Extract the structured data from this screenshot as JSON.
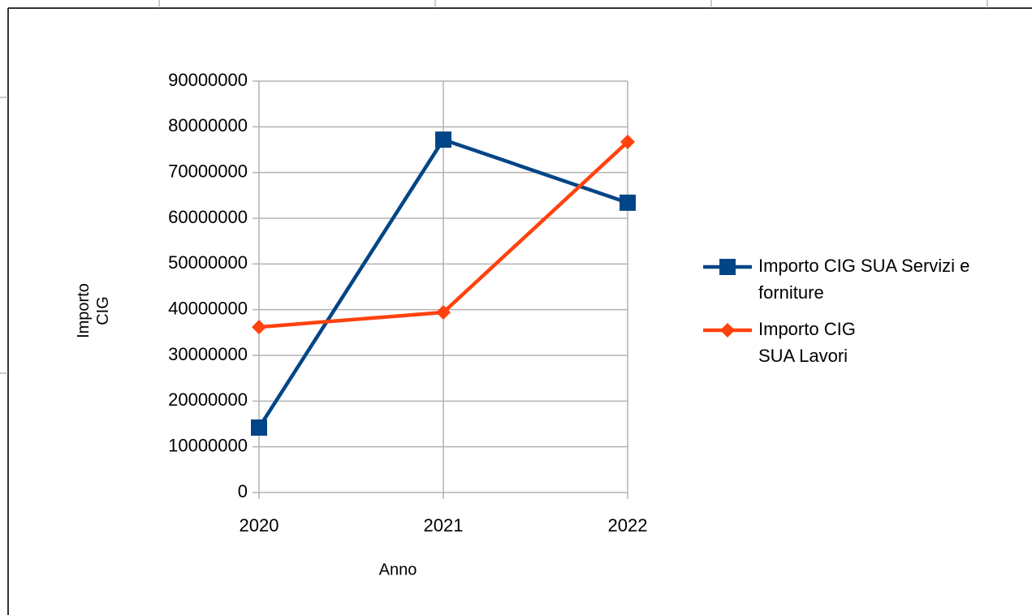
{
  "chart_data": {
    "type": "line",
    "x_label": "Anno",
    "y_label": "Importo CIG",
    "categories": [
      "2020",
      "2021",
      "2022"
    ],
    "series": [
      {
        "name": "Importo CIG SUA Servizi e forniture",
        "color": "#004586",
        "marker": "square",
        "values": [
          14200000,
          77200000,
          63400000
        ]
      },
      {
        "name": "Importo CIG SUA Lavori",
        "color": "#ff420e",
        "marker": "diamond",
        "values": [
          36200000,
          39400000,
          76700000
        ]
      }
    ],
    "ylim": [
      0,
      90000000
    ],
    "yticks": [
      0,
      10000000,
      20000000,
      30000000,
      40000000,
      50000000,
      60000000,
      70000000,
      80000000,
      90000000
    ],
    "grid": true,
    "legend": "right"
  }
}
